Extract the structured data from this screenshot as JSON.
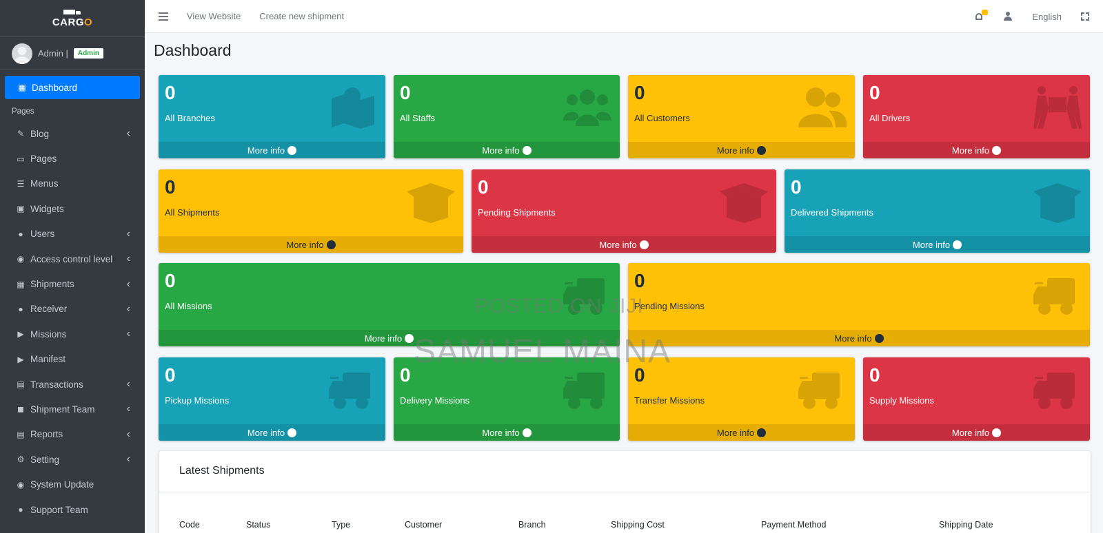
{
  "brand": {
    "text_main": "CARG",
    "text_accent": "O"
  },
  "user": {
    "name": "Admin |",
    "role": "Admin"
  },
  "topbar": {
    "view_website": "View Website",
    "create_shipment": "Create new shipment",
    "language": "English"
  },
  "sidebar": {
    "active": "Dashboard",
    "section_header": "Pages",
    "items": [
      {
        "label": "Blog",
        "has_children": true
      },
      {
        "label": "Pages",
        "has_children": false
      },
      {
        "label": "Menus",
        "has_children": false
      },
      {
        "label": "Widgets",
        "has_children": false
      },
      {
        "label": "Users",
        "has_children": true
      },
      {
        "label": "Access control level",
        "has_children": true
      },
      {
        "label": "Shipments",
        "has_children": true
      },
      {
        "label": "Receiver",
        "has_children": true
      },
      {
        "label": "Missions",
        "has_children": true
      },
      {
        "label": "Manifest",
        "has_children": false
      },
      {
        "label": "Transactions",
        "has_children": true
      },
      {
        "label": "Shipment Team",
        "has_children": true
      },
      {
        "label": "Reports",
        "has_children": true
      },
      {
        "label": "Setting",
        "has_children": true
      },
      {
        "label": "System Update",
        "has_children": false
      },
      {
        "label": "Support Team",
        "has_children": false
      }
    ]
  },
  "page_title": "Dashboard",
  "more_info": "More info",
  "boxes": [
    {
      "value": "0",
      "label": "All Branches"
    },
    {
      "value": "0",
      "label": "All Staffs"
    },
    {
      "value": "0",
      "label": "All Customers"
    },
    {
      "value": "0",
      "label": "All Drivers"
    },
    {
      "value": "0",
      "label": "All Shipments"
    },
    {
      "value": "0",
      "label": "Pending Shipments"
    },
    {
      "value": "0",
      "label": "Delivered Shipments"
    },
    {
      "value": "0",
      "label": "All Missions"
    },
    {
      "value": "0",
      "label": "Pending Missions"
    },
    {
      "value": "0",
      "label": "Pickup Missions"
    },
    {
      "value": "0",
      "label": "Delivery Missions"
    },
    {
      "value": "0",
      "label": "Transfer Missions"
    },
    {
      "value": "0",
      "label": "Supply Missions"
    }
  ],
  "latest": {
    "title": "Latest Shipments",
    "columns": [
      "Code",
      "Status",
      "Type",
      "Customer",
      "Branch",
      "Shipping Cost",
      "Payment Method",
      "Shipping Date"
    ]
  },
  "watermarks": [
    "POSTED ON JIJI",
    "SAMUEL MAINA"
  ]
}
